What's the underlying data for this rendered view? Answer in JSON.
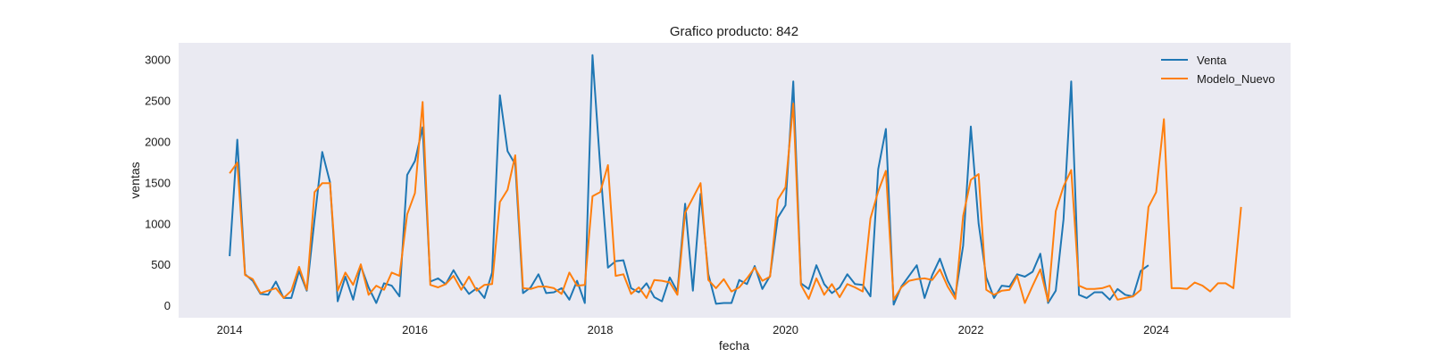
{
  "chart_data": {
    "type": "line",
    "title": "Grafico producto: 842",
    "xlabel": "fecha",
    "ylabel": "ventas",
    "xlim": [
      2013.45,
      2025.45
    ],
    "ylim": [
      -150,
      3200
    ],
    "x_ticks": [
      2014,
      2016,
      2018,
      2020,
      2022,
      2024
    ],
    "y_ticks": [
      0,
      500,
      1000,
      1500,
      2000,
      2500,
      3000
    ],
    "legend_position": "top-right",
    "grid": false,
    "x_start": 2014.0,
    "x_step": 0.08333,
    "series": [
      {
        "name": "Venta",
        "color": "#1f77b4",
        "values": [
          600,
          2020,
          380,
          300,
          140,
          130,
          290,
          90,
          90,
          420,
          180,
          1050,
          1870,
          1500,
          50,
          350,
          70,
          480,
          220,
          30,
          270,
          240,
          110,
          1590,
          1760,
          2170,
          290,
          330,
          260,
          430,
          270,
          140,
          210,
          90,
          400,
          2560,
          1880,
          1720,
          150,
          220,
          380,
          150,
          160,
          210,
          70,
          300,
          30,
          3050,
          1700,
          460,
          540,
          550,
          210,
          160,
          270,
          100,
          50,
          340,
          170,
          1240,
          180,
          1360,
          380,
          20,
          30,
          30,
          310,
          260,
          480,
          200,
          360,
          1070,
          1220,
          2730,
          270,
          200,
          490,
          260,
          150,
          220,
          380,
          260,
          250,
          110,
          1660,
          2150,
          10,
          230,
          360,
          490,
          90,
          370,
          570,
          300,
          120,
          730,
          2180,
          1000,
          340,
          90,
          240,
          230,
          380,
          350,
          410,
          630,
          30,
          180,
          1050,
          2730,
          130,
          90,
          160,
          160,
          70,
          200,
          130,
          110,
          420,
          490
        ]
      },
      {
        "name": "Modelo_Nuevo",
        "color": "#ff7f0e",
        "values": [
          1610,
          1740,
          370,
          320,
          150,
          180,
          210,
          90,
          180,
          470,
          190,
          1380,
          1490,
          1490,
          180,
          400,
          250,
          500,
          130,
          240,
          190,
          400,
          360,
          1110,
          1370,
          2480,
          250,
          220,
          260,
          360,
          190,
          350,
          180,
          250,
          260,
          1260,
          1410,
          1830,
          210,
          200,
          230,
          230,
          210,
          140,
          400,
          240,
          250,
          1330,
          1380,
          1710,
          360,
          380,
          140,
          220,
          90,
          310,
          300,
          280,
          130,
          1130,
          1310,
          1490,
          310,
          210,
          320,
          170,
          220,
          330,
          460,
          300,
          350,
          1290,
          1440,
          2460,
          250,
          80,
          330,
          130,
          260,
          100,
          260,
          220,
          170,
          1060,
          1390,
          1640,
          70,
          220,
          300,
          320,
          330,
          310,
          440,
          230,
          80,
          1090,
          1530,
          1600,
          190,
          130,
          180,
          190,
          360,
          30,
          240,
          440,
          50,
          1150,
          1450,
          1650,
          240,
          200,
          200,
          210,
          240,
          70,
          90,
          110,
          190,
          1200,
          1380,
          2270,
          210,
          210,
          200,
          280,
          240,
          170,
          270,
          270,
          210,
          1200
        ]
      }
    ]
  }
}
